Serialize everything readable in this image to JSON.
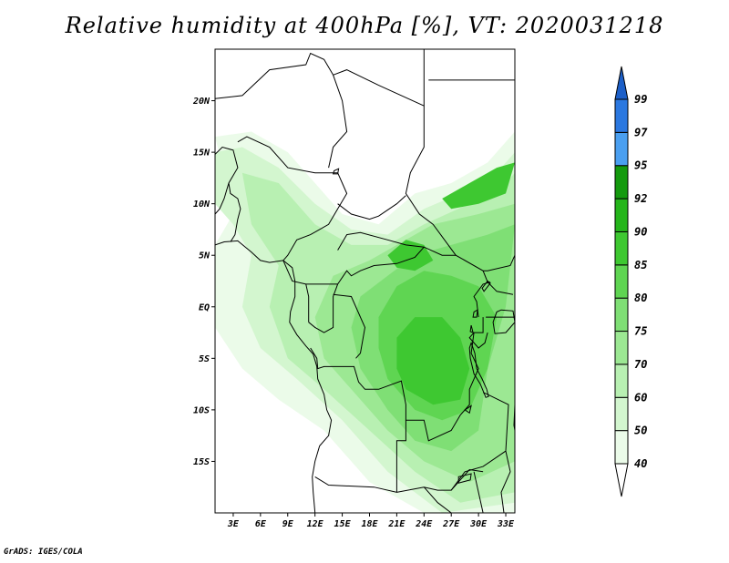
{
  "title": "Relative humidity at 400hPa [%], VT: 2020031218",
  "credit": "GrADS: IGES/COLA",
  "map": {
    "lon_range": [
      1,
      34
    ],
    "lat_range": [
      -20,
      25
    ],
    "lat_ticks": [
      {
        "value": 20,
        "label": "20N"
      },
      {
        "value": 15,
        "label": "15N"
      },
      {
        "value": 10,
        "label": "10N"
      },
      {
        "value": 5,
        "label": "5N"
      },
      {
        "value": 0,
        "label": "EQ"
      },
      {
        "value": -5,
        "label": "5S"
      },
      {
        "value": -10,
        "label": "10S"
      },
      {
        "value": -15,
        "label": "15S"
      }
    ],
    "lon_ticks": [
      {
        "value": 3,
        "label": "3E"
      },
      {
        "value": 6,
        "label": "6E"
      },
      {
        "value": 9,
        "label": "9E"
      },
      {
        "value": 12,
        "label": "12E"
      },
      {
        "value": 15,
        "label": "15E"
      },
      {
        "value": 18,
        "label": "18E"
      },
      {
        "value": 21,
        "label": "21E"
      },
      {
        "value": 24,
        "label": "24E"
      },
      {
        "value": 27,
        "label": "27E"
      },
      {
        "value": 30,
        "label": "30E"
      },
      {
        "value": 33,
        "label": "33E"
      }
    ]
  },
  "colorbar": {
    "levels": [
      {
        "label": "40",
        "color": "#ebfbe9"
      },
      {
        "label": "50",
        "color": "#d3f6cf"
      },
      {
        "label": "60",
        "color": "#b8f0b2"
      },
      {
        "label": "70",
        "color": "#9ce893"
      },
      {
        "label": "75",
        "color": "#7fdf75"
      },
      {
        "label": "80",
        "color": "#5fd552"
      },
      {
        "label": "85",
        "color": "#3ec831"
      },
      {
        "label": "90",
        "color": "#25b51b"
      },
      {
        "label": "92",
        "color": "#149a0e"
      },
      {
        "label": "95",
        "color": "#4a9ff0"
      },
      {
        "label": "97",
        "color": "#2b78e0"
      },
      {
        "label": "99",
        "color": "#1c5fc8"
      }
    ],
    "below_color": "#ffffff",
    "above_color": "#1c5fc8"
  },
  "humidity_zones": [
    {
      "level": "40",
      "points": [
        [
          1,
          16.5
        ],
        [
          5,
          17
        ],
        [
          9,
          15
        ],
        [
          12,
          12
        ],
        [
          15,
          9
        ],
        [
          19,
          8
        ],
        [
          23,
          11
        ],
        [
          27,
          12
        ],
        [
          31,
          14
        ],
        [
          34,
          17
        ],
        [
          34,
          -20
        ],
        [
          24,
          -20
        ],
        [
          18,
          -17
        ],
        [
          13,
          -12
        ],
        [
          8,
          -9
        ],
        [
          4,
          -6
        ],
        [
          1,
          -2
        ],
        [
          1,
          6
        ],
        [
          3,
          9
        ],
        [
          2,
          13
        ]
      ]
    },
    {
      "level": "50",
      "points": [
        [
          1,
          15
        ],
        [
          4,
          15.5
        ],
        [
          8,
          13.5
        ],
        [
          12,
          10
        ],
        [
          16,
          7.5
        ],
        [
          20,
          7
        ],
        [
          24,
          9.5
        ],
        [
          28,
          11
        ],
        [
          32,
          13
        ],
        [
          34,
          15
        ],
        [
          34,
          -19
        ],
        [
          26,
          -20
        ],
        [
          20,
          -16
        ],
        [
          15,
          -11
        ],
        [
          10,
          -7
        ],
        [
          6,
          -4
        ],
        [
          4,
          0
        ],
        [
          5,
          5
        ],
        [
          3,
          8
        ],
        [
          1,
          10
        ]
      ]
    },
    {
      "level": "60",
      "points": [
        [
          4,
          13
        ],
        [
          8,
          12
        ],
        [
          12,
          8
        ],
        [
          16,
          6
        ],
        [
          20,
          6
        ],
        [
          24,
          8
        ],
        [
          29,
          10
        ],
        [
          33,
          12
        ],
        [
          34,
          13
        ],
        [
          34,
          -18
        ],
        [
          28,
          -19
        ],
        [
          23,
          -16
        ],
        [
          18,
          -12
        ],
        [
          13,
          -8
        ],
        [
          9,
          -5
        ],
        [
          7,
          0
        ],
        [
          8,
          4
        ],
        [
          5,
          8
        ]
      ]
    },
    {
      "level": "70",
      "points": [
        [
          14,
          3
        ],
        [
          18,
          4.5
        ],
        [
          21,
          6
        ],
        [
          25,
          8
        ],
        [
          30,
          9
        ],
        [
          34,
          10
        ],
        [
          34,
          -15
        ],
        [
          29,
          -17
        ],
        [
          24,
          -15
        ],
        [
          20,
          -12
        ],
        [
          16,
          -8
        ],
        [
          13,
          -5
        ],
        [
          12,
          -1
        ]
      ]
    },
    {
      "level": "75",
      "points": [
        [
          17,
          1
        ],
        [
          20,
          3
        ],
        [
          23,
          5
        ],
        [
          27,
          6
        ],
        [
          31,
          7
        ],
        [
          34,
          8
        ],
        [
          33,
          0
        ],
        [
          31,
          -6
        ],
        [
          30,
          -12
        ],
        [
          27,
          -14
        ],
        [
          23,
          -13
        ],
        [
          20,
          -10
        ],
        [
          17,
          -6
        ],
        [
          16,
          -2
        ]
      ]
    },
    {
      "level": "80",
      "points": [
        [
          19,
          -1
        ],
        [
          21,
          2
        ],
        [
          24,
          3.5
        ],
        [
          27,
          3
        ],
        [
          30,
          2
        ],
        [
          32,
          -1
        ],
        [
          31,
          -6
        ],
        [
          29,
          -10
        ],
        [
          26,
          -11
        ],
        [
          23,
          -10
        ],
        [
          20,
          -7
        ],
        [
          19,
          -4
        ]
      ]
    },
    {
      "level": "85",
      "points": [
        [
          21,
          -3
        ],
        [
          23,
          -1
        ],
        [
          26,
          -1
        ],
        [
          28,
          -3
        ],
        [
          29,
          -6
        ],
        [
          28,
          -9
        ],
        [
          25,
          -9.5
        ],
        [
          22,
          -8
        ],
        [
          21,
          -6
        ]
      ]
    },
    {
      "level": "85",
      "points": [
        [
          20,
          5
        ],
        [
          22,
          6.5
        ],
        [
          24,
          6
        ],
        [
          25,
          4.5
        ],
        [
          23,
          3.5
        ],
        [
          21,
          3.8
        ]
      ]
    },
    {
      "level": "85",
      "points": [
        [
          26,
          10.5
        ],
        [
          29,
          12
        ],
        [
          32,
          13.5
        ],
        [
          34,
          14
        ],
        [
          33,
          11
        ],
        [
          30,
          10
        ],
        [
          27,
          9.5
        ]
      ]
    }
  ],
  "borders": [
    [
      [
        1,
        20.2
      ],
      [
        4,
        20.5
      ],
      [
        7,
        23
      ],
      [
        11,
        23.5
      ],
      [
        11.5,
        24.6
      ],
      [
        13,
        24
      ],
      [
        14,
        22.5
      ],
      [
        15.5,
        23
      ],
      [
        19,
        21.5
      ],
      [
        24,
        19.5
      ],
      [
        24,
        15.5
      ],
      [
        22.5,
        13
      ],
      [
        22,
        11
      ],
      [
        23.5,
        9
      ],
      [
        25,
        8
      ],
      [
        27.5,
        5
      ],
      [
        30.5,
        3.5
      ],
      [
        31,
        3.5
      ],
      [
        33.5,
        4
      ],
      [
        34,
        5
      ]
    ],
    [
      [
        24,
        25
      ],
      [
        24,
        19.5
      ]
    ],
    [
      [
        24.5,
        22
      ],
      [
        34,
        22
      ]
    ],
    [
      [
        3.5,
        16
      ],
      [
        4.5,
        16.5
      ],
      [
        7,
        15.5
      ],
      [
        9,
        13.5
      ],
      [
        12,
        13
      ],
      [
        14.5,
        13
      ],
      [
        15,
        12
      ],
      [
        15.5,
        11
      ],
      [
        14.5,
        9.5
      ],
      [
        13.5,
        8
      ],
      [
        11.5,
        7
      ],
      [
        10,
        6.5
      ],
      [
        9,
        5
      ],
      [
        8.5,
        4.5
      ]
    ],
    [
      [
        14,
        22.5
      ],
      [
        15,
        20
      ],
      [
        15.5,
        17
      ],
      [
        14,
        15.5
      ],
      [
        13.5,
        13.5
      ]
    ],
    [
      [
        1,
        14.8
      ],
      [
        1.8,
        15.5
      ],
      [
        3,
        15.2
      ],
      [
        3.5,
        13.5
      ],
      [
        2.5,
        12
      ],
      [
        2,
        10.5
      ],
      [
        1.5,
        9.5
      ],
      [
        1,
        9
      ]
    ],
    [
      [
        2.5,
        12
      ],
      [
        2.7,
        11
      ],
      [
        3.5,
        10.5
      ],
      [
        3.8,
        9.5
      ],
      [
        3.5,
        8.5
      ],
      [
        3.2,
        7
      ],
      [
        2.7,
        6.3
      ]
    ],
    [
      [
        14.5,
        10
      ],
      [
        16,
        9
      ],
      [
        18,
        8.5
      ],
      [
        19,
        8.8
      ],
      [
        21,
        10
      ],
      [
        22,
        10.8
      ]
    ],
    [
      [
        14.5,
        5.5
      ],
      [
        15.5,
        7
      ],
      [
        17,
        7.2
      ],
      [
        20,
        6.5
      ],
      [
        22,
        6
      ],
      [
        24,
        5.8
      ],
      [
        26,
        5
      ],
      [
        27.5,
        5
      ]
    ],
    [
      [
        8.5,
        4.5
      ],
      [
        9.5,
        2.5
      ],
      [
        11,
        2.2
      ],
      [
        13,
        2.2
      ],
      [
        14.5,
        2.2
      ],
      [
        15.5,
        3.5
      ],
      [
        16,
        3
      ],
      [
        17,
        3.5
      ],
      [
        18.5,
        4
      ],
      [
        21,
        4.2
      ],
      [
        23,
        4.8
      ],
      [
        24,
        5.8
      ]
    ],
    [
      [
        11,
        2.2
      ],
      [
        11.3,
        1
      ],
      [
        11.3,
        -1.5
      ]
    ],
    [
      [
        14.5,
        2.2
      ],
      [
        14,
        1
      ],
      [
        14,
        -2
      ],
      [
        13,
        -2.5
      ],
      [
        12,
        -2
      ],
      [
        11.3,
        -1.5
      ]
    ],
    [
      [
        14,
        1.2
      ],
      [
        16,
        1
      ],
      [
        17.5,
        -2
      ],
      [
        17,
        -4.5
      ],
      [
        16.5,
        -5
      ]
    ],
    [
      [
        11.5,
        -4
      ],
      [
        12.2,
        -5
      ],
      [
        12.3,
        -6
      ],
      [
        13,
        -5.8
      ],
      [
        16.3,
        -5.8
      ],
      [
        16.8,
        -7.3
      ],
      [
        17.5,
        -8
      ],
      [
        19,
        -8
      ],
      [
        21.5,
        -7.2
      ],
      [
        22,
        -9.5
      ],
      [
        22,
        -11
      ],
      [
        24,
        -11
      ],
      [
        24.5,
        -13
      ],
      [
        27,
        -12
      ],
      [
        28,
        -10.5
      ],
      [
        29,
        -9.5
      ],
      [
        29,
        -8
      ],
      [
        30,
        -6
      ],
      [
        29.2,
        -4.5
      ],
      [
        29.5,
        -2.5
      ]
    ],
    [
      [
        12,
        -16.5
      ],
      [
        13.5,
        -17.3
      ],
      [
        18.5,
        -17.5
      ],
      [
        21,
        -18
      ],
      [
        24,
        -17.5
      ],
      [
        25.5,
        -17.8
      ],
      [
        27,
        -17.8
      ],
      [
        28.5,
        -16
      ],
      [
        30.5,
        -15.5
      ],
      [
        33,
        -14
      ],
      [
        33.3,
        -9.5
      ],
      [
        31,
        -8.5
      ],
      [
        30.5,
        -8.3
      ]
    ],
    [
      [
        21,
        -18
      ],
      [
        21,
        -13
      ],
      [
        22,
        -13
      ],
      [
        22,
        -11
      ]
    ],
    [
      [
        30,
        -1
      ],
      [
        29.8,
        0.5
      ],
      [
        29.5,
        1
      ],
      [
        30.5,
        2.2
      ],
      [
        31.3,
        2.4
      ]
    ],
    [
      [
        30.8,
        -1
      ],
      [
        33.9,
        -1
      ],
      [
        34,
        -1.2
      ]
    ],
    [
      [
        30.5,
        -1
      ],
      [
        30.5,
        -2.5
      ],
      [
        29.5,
        -2.5
      ],
      [
        29,
        -3
      ],
      [
        30,
        -4
      ],
      [
        30.7,
        -3.5
      ],
      [
        31,
        -2.5
      ]
    ],
    [
      [
        30.5,
        3.5
      ],
      [
        31,
        2.4
      ],
      [
        32,
        1.5
      ],
      [
        33.8,
        1.2
      ]
    ],
    [
      [
        27,
        -17.8
      ],
      [
        29,
        -15.8
      ],
      [
        30.5,
        -16
      ]
    ],
    [
      [
        33,
        -14
      ],
      [
        33.5,
        -16
      ],
      [
        32.5,
        -18
      ],
      [
        32.8,
        -20
      ]
    ],
    [
      [
        29.5,
        -16
      ],
      [
        30.5,
        -20
      ]
    ],
    [
      [
        24,
        -17.5
      ],
      [
        25.5,
        -19
      ],
      [
        27,
        -20
      ]
    ]
  ],
  "coastline": [
    [
      [
        1,
        6
      ],
      [
        2,
        6.3
      ],
      [
        3.5,
        6.4
      ],
      [
        5,
        5.3
      ],
      [
        6,
        4.5
      ],
      [
        7,
        4.3
      ],
      [
        8.5,
        4.5
      ],
      [
        9.5,
        3.8
      ],
      [
        9.8,
        2.5
      ],
      [
        9.8,
        1
      ],
      [
        9.3,
        -0.5
      ],
      [
        9.2,
        -1.5
      ],
      [
        10,
        -2.7
      ],
      [
        11,
        -3.8
      ],
      [
        11.8,
        -4.6
      ],
      [
        12.2,
        -5.8
      ],
      [
        12.3,
        -7
      ],
      [
        13,
        -8.5
      ],
      [
        13.3,
        -10
      ],
      [
        13.8,
        -11
      ],
      [
        13.5,
        -12.5
      ],
      [
        12.5,
        -13.5
      ],
      [
        12,
        -15
      ],
      [
        11.7,
        -16.5
      ],
      [
        11.8,
        -18
      ],
      [
        12,
        -20
      ]
    ]
  ],
  "lakes": [
    [
      [
        32.5,
        -0.3
      ],
      [
        33.8,
        -0.4
      ],
      [
        34,
        -1.5
      ],
      [
        33,
        -2.5
      ],
      [
        31.8,
        -2.6
      ],
      [
        31.6,
        -1.5
      ],
      [
        32,
        -0.5
      ]
    ],
    [
      [
        29.2,
        -3.5
      ],
      [
        29.6,
        -4.5
      ],
      [
        29.8,
        -6
      ],
      [
        30.4,
        -7
      ],
      [
        30.9,
        -8
      ],
      [
        31.1,
        -8.7
      ],
      [
        30.8,
        -8.8
      ],
      [
        30.2,
        -7.5
      ],
      [
        29.5,
        -6.5
      ],
      [
        29.1,
        -5
      ],
      [
        29,
        -4
      ]
    ],
    [
      [
        34,
        -9.5
      ],
      [
        34.3,
        -11
      ],
      [
        34.6,
        -12.5
      ],
      [
        34.9,
        -14
      ],
      [
        34.5,
        -14.3
      ],
      [
        34.2,
        -13
      ],
      [
        33.9,
        -11.5
      ]
    ],
    [
      [
        29.5,
        -0.5
      ],
      [
        29.9,
        -0.3
      ],
      [
        29.8,
        -1
      ],
      [
        29.4,
        -1
      ]
    ],
    [
      [
        30.6,
        1.5
      ],
      [
        31.3,
        2.3
      ],
      [
        31.0,
        2.5
      ],
      [
        30.4,
        1.8
      ]
    ],
    [
      [
        29.2,
        -1.8
      ],
      [
        29.4,
        -2.5
      ],
      [
        29.1,
        -2.4
      ]
    ],
    [
      [
        27.8,
        -16.5
      ],
      [
        29.2,
        -16.2
      ],
      [
        29.1,
        -16.8
      ],
      [
        27.8,
        -17.1
      ]
    ],
    [
      [
        28.5,
        -10
      ],
      [
        29.2,
        -9.6
      ],
      [
        29.0,
        -10.3
      ]
    ],
    [
      [
        14.1,
        13.2
      ],
      [
        14.6,
        13.4
      ],
      [
        14.5,
        12.9
      ],
      [
        14.0,
        12.9
      ]
    ]
  ]
}
